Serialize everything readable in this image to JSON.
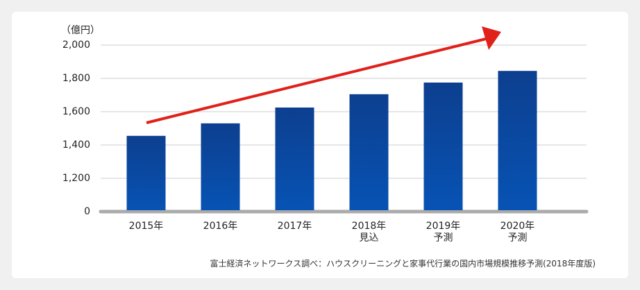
{
  "chart_data": {
    "type": "bar",
    "unit_label": "（億円）",
    "categories": [
      "2015年",
      "2016年",
      "2017年",
      "2018年\n見込",
      "2019年\n予測",
      "2020年\n予測"
    ],
    "values": [
      1455,
      1530,
      1625,
      1705,
      1775,
      1845
    ],
    "color": "#0a47a0",
    "ylim": [
      0,
      2000
    ],
    "y_break": [
      0,
      1000
    ],
    "yticks": [
      0,
      {
        "value": 1200,
        "label": "1,200"
      },
      {
        "value": 1400,
        "label": "1,400"
      },
      {
        "value": 1600,
        "label": "1,600"
      },
      {
        "value": 1800,
        "label": "1,800"
      },
      {
        "value": 2000,
        "label": "2,000"
      }
    ],
    "grid": true,
    "source": "富士経済ネットワークス調べ：ハウスクリーニングと家事代行業の国内市場規模推移予測(2018年度版)"
  }
}
